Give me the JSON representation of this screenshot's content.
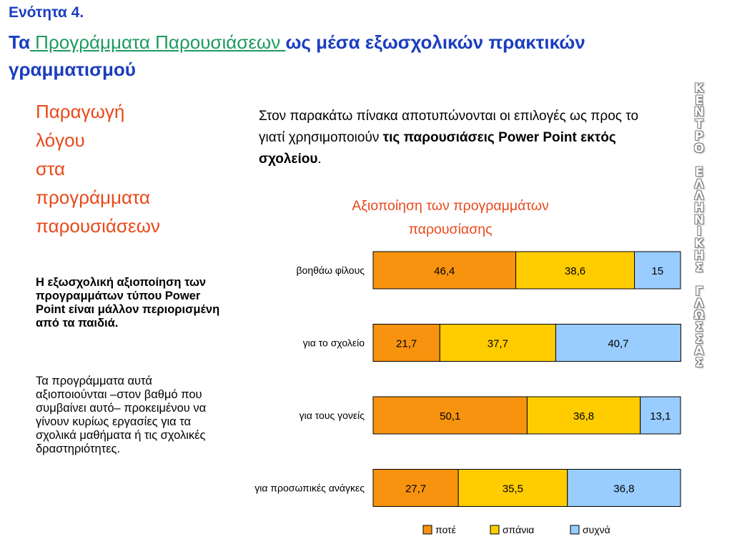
{
  "header": {
    "section": "Ενότητα 4.",
    "title_prefix": "Τα",
    "title_link": " Προγράμματα Παρουσιάσεων ",
    "title_suffix": "ως μέσα εξωσχολικών πρακτικών γραμματισμού"
  },
  "sidebar": {
    "heading_lines": [
      "Παραγωγή",
      "λόγου",
      "στα",
      "προγράμματα",
      "παρουσιάσεων"
    ],
    "bold_text": "Η εξωσχολική αξιοποίηση των προγραμμάτων τύπου Power Point είναι μάλλον περιορισμένη από τα παιδιά.",
    "body_text": "Τα προγράμματα αυτά αξιοποιούνται –στον βαθμό που συμβαίνει αυτό– προκειμένου να γίνουν κυρίως εργασίες για τα σχολικά μαθήματα ή τις σχολικές δραστηριότητες."
  },
  "intro": {
    "text": "Στον παρακάτω πίνακα αποτυπώνονται οι επιλογές ως προς το γιατί χρησιμοποιούν ",
    "bold": "τις παρουσιάσεις Power Point εκτός σχολείου",
    "end": "."
  },
  "watermark": {
    "letters": [
      "Κ",
      "Ε",
      "Ν",
      "Τ",
      "Ρ",
      "Ο",
      " ",
      "Ε",
      "Λ",
      "Λ",
      "Η",
      "Ν",
      "Ι",
      "Κ",
      "Η",
      "Σ",
      " ",
      "Γ",
      "Λ",
      "Ω",
      "Σ",
      "Σ",
      "Α",
      "Σ"
    ]
  },
  "chart_data": {
    "type": "bar",
    "orientation": "horizontal",
    "stacked": true,
    "title_lines": [
      "Αξιοποίηση των προγραμμάτων",
      "παρουσίασης"
    ],
    "categories": [
      "βοηθάω φίλους",
      "για το σχολείο",
      "για τους γονείς",
      "για προσωπικές ανάγκες"
    ],
    "series": [
      {
        "name": "ποτέ",
        "color": "#f7930f",
        "values": [
          46.4,
          21.7,
          50.1,
          27.7
        ],
        "labels": [
          "46,4",
          "21,7",
          "50,1",
          "27,7"
        ]
      },
      {
        "name": "σπάνια",
        "color": "#ffcc00",
        "values": [
          38.6,
          37.7,
          36.8,
          35.5
        ],
        "labels": [
          "38,6",
          "37,7",
          "36,8",
          "35,5"
        ]
      },
      {
        "name": "συχνά",
        "color": "#99ccff",
        "values": [
          15,
          40.7,
          13.1,
          36.8
        ],
        "labels": [
          "15",
          "40,7",
          "13,1",
          "36,8"
        ]
      }
    ],
    "xlim": [
      0,
      100
    ],
    "grid": false,
    "legend_position": "bottom"
  }
}
